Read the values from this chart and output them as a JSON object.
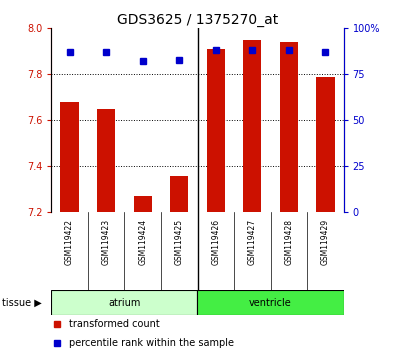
{
  "title": "GDS3625 / 1375270_at",
  "samples": [
    "GSM119422",
    "GSM119423",
    "GSM119424",
    "GSM119425",
    "GSM119426",
    "GSM119427",
    "GSM119428",
    "GSM119429"
  ],
  "red_values": [
    7.68,
    7.65,
    7.27,
    7.36,
    7.91,
    7.95,
    7.94,
    7.79
  ],
  "blue_values": [
    87,
    87,
    82,
    83,
    88,
    88,
    88,
    87
  ],
  "ymin": 7.2,
  "ymax": 8.0,
  "yticks": [
    7.2,
    7.4,
    7.6,
    7.8,
    8.0
  ],
  "right_yticks": [
    0,
    25,
    50,
    75,
    100
  ],
  "right_ylabels": [
    "0",
    "25",
    "50",
    "75",
    "100%"
  ],
  "bar_color": "#cc1100",
  "dot_color": "#0000cc",
  "background_color": "#ffffff",
  "label_bg_color": "#cccccc",
  "atrium_color": "#ccffcc",
  "ventricle_color": "#44ee44",
  "legend_items": [
    {
      "color": "#cc1100",
      "label": "transformed count"
    },
    {
      "color": "#0000cc",
      "label": "percentile rank within the sample"
    }
  ],
  "title_fontsize": 10,
  "tick_fontsize": 7,
  "sample_fontsize": 5.5,
  "legend_fontsize": 7,
  "tissue_fontsize": 7
}
